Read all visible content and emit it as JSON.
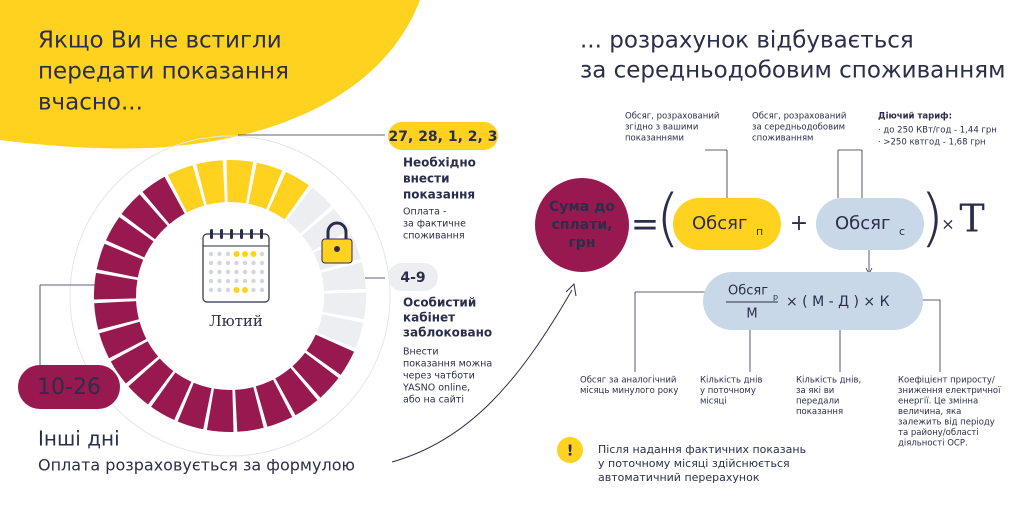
{
  "headline_left": [
    "Якщо Ви не встигли",
    "передати показання",
    "вчасно..."
  ],
  "headline_right": [
    "... розрахунок відбувається",
    "за середньодобовим споживанням"
  ],
  "calendar": {
    "month": "Лютий"
  },
  "periods": [
    {
      "badge": "27, 28, 1, 2, 3",
      "title": [
        "Необхідно",
        "внести",
        "показання"
      ],
      "note": [
        "Оплата -",
        "за фактичне",
        "споживання"
      ]
    },
    {
      "badge": "4-9",
      "title": [
        "Особистий",
        "кабінет",
        "заблоковано"
      ],
      "note": [
        "Внести",
        "показання можна",
        "через чатботи",
        "YASNO online,",
        "або на сайті"
      ]
    },
    {
      "badge": "10-26",
      "title": "Інші дні",
      "note": "Оплата розраховується за формулою"
    }
  ],
  "formula": {
    "result": [
      "Сума до",
      "сплати,",
      "грн"
    ],
    "equals": "=",
    "open": "(",
    "close": ")",
    "term1": {
      "text": "Обсяг",
      "sub": "п"
    },
    "plus": "+",
    "term2": {
      "text": "Обсяг",
      "sub": "с"
    },
    "times": "×",
    "tariff_symbol": "T",
    "lower": {
      "numerator": {
        "text": "Обсяг",
        "sub": "р"
      },
      "denominator": "М",
      "rest": "× ( М - Д ) × К"
    }
  },
  "annotations_top": [
    [
      "Обсяг, розрахований",
      "згідно з вашими",
      "показаннями"
    ],
    [
      "Обсяг, розрахований",
      "за середньодобовим",
      "споживанням"
    ]
  ],
  "tariff": {
    "title": "Діючий тариф:",
    "items": [
      "· до 250 КВт/год - 1,44 грн",
      "· >250 квтгод - 1,68 грн"
    ]
  },
  "annotations_bottom": [
    [
      "Обсяг за аналогічний",
      "місяць минулого року"
    ],
    [
      "Кількість днів",
      "у поточному",
      "місяці"
    ],
    [
      "Кількість днів,",
      "за які ви",
      "передали",
      "показання"
    ],
    [
      "Коефіцієнт приросту/",
      "зниження електричної",
      "енергії. Це змінна",
      "величина, яка",
      "залежить від періоду",
      "та району/області",
      "діяльності ОСР."
    ]
  ],
  "notice": {
    "icon": "!",
    "lines": [
      "Після надання фактичних показань",
      "у поточному місяці здійснюється",
      "автоматичний перерахунок"
    ]
  }
}
